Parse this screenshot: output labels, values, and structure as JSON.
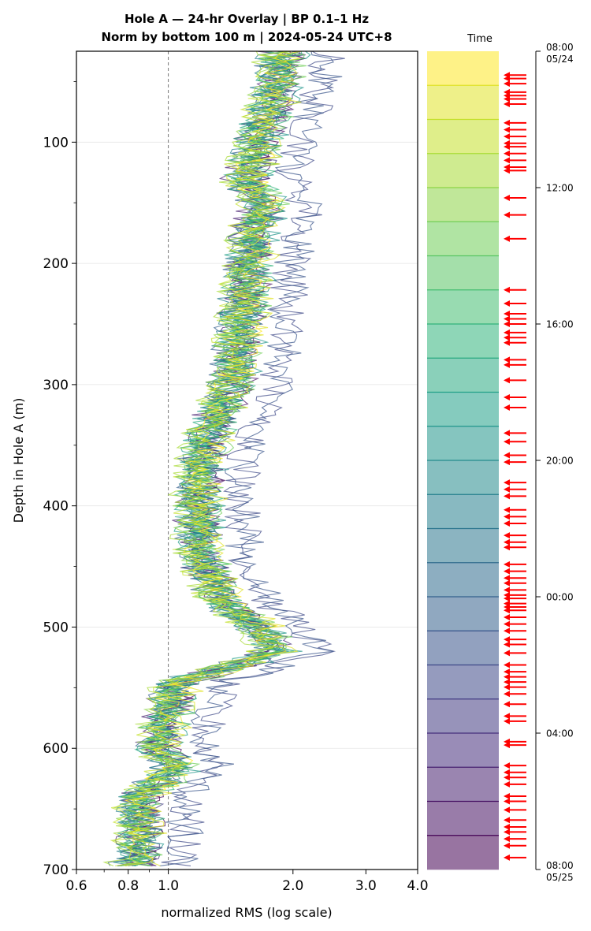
{
  "chart_data": {
    "type": "line",
    "title": "Hole A — 24-hr Overlay  |  BP 0.1–1 Hz",
    "subtitle": "Norm by bottom 100 m  |  2024-05-24 UTC+8",
    "xlabel": "normalized RMS  (log scale)",
    "ylabel": "Depth in Hole A (m)",
    "x_scale": "log",
    "xlim": [
      0.6,
      4.0
    ],
    "ylim": [
      700,
      25
    ],
    "y_inverted": true,
    "grid": "horizontal",
    "x_ticks": [
      0.6,
      0.8,
      1.0,
      2.0,
      3.0,
      4.0
    ],
    "x_tick_labels": [
      "0.6",
      "0.8",
      "1.0",
      "2.0",
      "3.0",
      "4.0"
    ],
    "y_ticks": [
      100,
      200,
      300,
      400,
      500,
      600,
      700
    ],
    "y_tick_labels": [
      "100",
      "200",
      "300",
      "400",
      "500",
      "600",
      "700"
    ],
    "reference_line": {
      "x": 1.0,
      "style": "dashed"
    },
    "series_count": 24,
    "profile_anchors": {
      "depth": [
        25,
        60,
        100,
        130,
        155,
        175,
        210,
        250,
        290,
        330,
        360,
        400,
        440,
        480,
        500,
        520,
        545,
        575,
        600,
        615,
        640,
        670,
        700
      ],
      "mean_rms": [
        1.9,
        1.8,
        1.65,
        1.55,
        1.7,
        1.6,
        1.55,
        1.5,
        1.45,
        1.3,
        1.2,
        1.18,
        1.2,
        1.35,
        1.65,
        1.8,
        1.05,
        0.98,
        0.95,
        1.05,
        0.85,
        0.86,
        0.82
      ]
    },
    "colorbar": {
      "label": "Time",
      "colormap": "viridis",
      "top_label": "08:00\n05/24",
      "bottom_label": "08:00\n05/25",
      "ticks": [
        "08:00\n05/24",
        "12:00",
        "16:00",
        "20:00",
        "00:00",
        "04:00",
        "08:00\n05/25"
      ],
      "bands": 24,
      "arrow_color": "#ff0000",
      "arrows_hours": [
        0.7,
        0.8,
        0.95,
        1.2,
        1.3,
        1.4,
        1.55,
        2.1,
        2.3,
        2.5,
        2.7,
        2.8,
        3.0,
        3.2,
        3.4,
        3.5,
        4.3,
        4.8,
        5.5,
        7.0,
        7.4,
        7.7,
        7.85,
        8.0,
        8.25,
        8.4,
        8.55,
        9.05,
        9.2,
        9.65,
        10.15,
        10.45,
        11.2,
        11.45,
        11.85,
        12.05,
        12.65,
        12.85,
        13.05,
        13.45,
        13.65,
        13.85,
        14.2,
        14.4,
        14.55,
        15.05,
        15.25,
        15.45,
        15.6,
        15.8,
        15.95,
        16.05,
        16.2,
        16.3,
        16.4,
        16.6,
        16.8,
        17.0,
        17.25,
        17.4,
        17.65,
        18.0,
        18.2,
        18.35,
        18.5,
        18.65,
        18.85,
        19.15,
        19.5,
        19.65,
        20.25,
        20.35,
        20.95,
        21.15,
        21.3,
        21.5,
        21.85,
        22.0,
        22.25,
        22.55,
        22.75,
        22.9,
        23.1,
        23.3,
        23.65
      ]
    }
  }
}
